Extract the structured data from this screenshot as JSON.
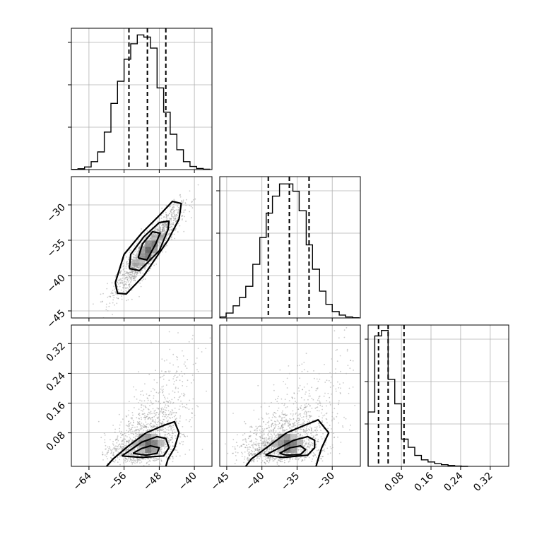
{
  "chart_data": [
    {
      "panel": "hist-param-1",
      "type": "histogram",
      "xlim": [
        -68,
        -36
      ],
      "ylim": [
        0,
        3200
      ],
      "bin_edges": [
        -68,
        -66.5,
        -65,
        -63.5,
        -62,
        -60.5,
        -59,
        -57.5,
        -56,
        -54.5,
        -53,
        -51.5,
        -50,
        -48.5,
        -47,
        -45.5,
        -44,
        -42.5,
        -41,
        -39.5,
        -38,
        -36.5
      ],
      "counts": [
        5,
        20,
        60,
        180,
        400,
        850,
        1500,
        2000,
        2500,
        2850,
        3050,
        3000,
        2750,
        1850,
        1300,
        800,
        450,
        180,
        70,
        25,
        10
      ],
      "quantiles": [
        -54.9,
        -50.7,
        -46.5
      ]
    },
    {
      "panel": "hist-param-2",
      "type": "histogram",
      "xlim": [
        -46,
        -26
      ],
      "ylim": [
        0,
        2900
      ],
      "bin_edges": [
        -45.9,
        -45.1,
        -44.1,
        -43.2,
        -42.3,
        -41.3,
        -40.3,
        -39.4,
        -38.5,
        -37.5,
        -36.5,
        -35.6,
        -34.7,
        -33.7,
        -32.8,
        -31.8,
        -30.9,
        -30.0,
        -29.0,
        -28.1,
        -27.1,
        -26.2
      ],
      "counts": [
        20,
        100,
        250,
        420,
        650,
        1100,
        1650,
        2150,
        2500,
        2750,
        2750,
        2600,
        2200,
        1500,
        1000,
        550,
        280,
        130,
        60,
        20,
        5
      ],
      "quantiles": [
        -39.1,
        -36.1,
        -33.3
      ]
    },
    {
      "panel": "hist-param-3",
      "type": "histogram",
      "xlim": [
        -0.01,
        0.37
      ],
      "ylim": [
        0,
        2600
      ],
      "bin_edges": [
        -0.01,
        0.008,
        0.026,
        0.044,
        0.062,
        0.08,
        0.098,
        0.116,
        0.134,
        0.152,
        0.17,
        0.188,
        0.206,
        0.224,
        0.242,
        0.26
      ],
      "counts": [
        1000,
        2400,
        2500,
        1600,
        1150,
        500,
        350,
        200,
        120,
        80,
        50,
        30,
        15,
        5,
        0
      ],
      "quantiles": [
        0.018,
        0.044,
        0.087
      ]
    },
    {
      "panel": "scatter-p1-p2",
      "type": "scatter",
      "xlim": [
        -68,
        -36
      ],
      "ylim": [
        -46,
        -26
      ],
      "center": [
        -50.5,
        -36.4
      ],
      "sigma": [
        3.6,
        2.9
      ],
      "rho": 0.9,
      "contours": [
        [
          [
            -58.0,
            -41.0
          ],
          [
            -57.5,
            -42.5
          ],
          [
            -55.5,
            -42.6
          ],
          [
            -51.5,
            -40.0
          ],
          [
            -46.0,
            -35.0
          ],
          [
            -43.5,
            -32.0
          ],
          [
            -43.0,
            -29.8
          ],
          [
            -45.0,
            -29.5
          ],
          [
            -48.0,
            -31.5
          ],
          [
            -52.0,
            -34.0
          ],
          [
            -56.0,
            -37.0
          ],
          [
            -58.0,
            -41.0
          ]
        ],
        [
          [
            -54.8,
            -39.0
          ],
          [
            -52.5,
            -39.3
          ],
          [
            -48.0,
            -36.5
          ],
          [
            -46.0,
            -33.5
          ],
          [
            -45.8,
            -32.3
          ],
          [
            -48.0,
            -32.5
          ],
          [
            -51.5,
            -34.5
          ],
          [
            -54.5,
            -37.0
          ],
          [
            -54.8,
            -39.0
          ]
        ],
        [
          [
            -52.8,
            -37.5
          ],
          [
            -50.8,
            -37.8
          ],
          [
            -48.8,
            -35.5
          ],
          [
            -47.8,
            -34.0
          ],
          [
            -49.5,
            -33.8
          ],
          [
            -51.8,
            -35.5
          ],
          [
            -52.8,
            -37.5
          ]
        ]
      ]
    },
    {
      "panel": "scatter-p1-p3",
      "type": "scatter",
      "xlim": [
        -68,
        -36
      ],
      "ylim": [
        -0.01,
        0.37
      ],
      "center": [
        -50.5,
        0.052
      ],
      "sigma": [
        3.6,
        0.045
      ],
      "contours": [
        [
          [
            -60.0,
            -0.01
          ],
          [
            -58.5,
            0.01
          ],
          [
            -55.0,
            0.045
          ],
          [
            -51.0,
            0.08
          ],
          [
            -47.0,
            0.1
          ],
          [
            -44.5,
            0.11
          ],
          [
            -43.5,
            0.08
          ],
          [
            -44.5,
            0.04
          ],
          [
            -46.0,
            0.01
          ],
          [
            -46.5,
            -0.01
          ]
        ],
        [
          [
            -56.5,
            0.018
          ],
          [
            -55.0,
            0.03
          ],
          [
            -52.0,
            0.055
          ],
          [
            -48.5,
            0.07
          ],
          [
            -46.5,
            0.065
          ],
          [
            -45.8,
            0.04
          ],
          [
            -47.0,
            0.018
          ],
          [
            -52.0,
            0.014
          ],
          [
            -56.5,
            0.018
          ]
        ],
        [
          [
            -54.0,
            0.025
          ],
          [
            -52.0,
            0.038
          ],
          [
            -50.0,
            0.045
          ],
          [
            -48.0,
            0.04
          ],
          [
            -48.5,
            0.025
          ],
          [
            -51.0,
            0.02
          ],
          [
            -54.0,
            0.025
          ]
        ]
      ]
    },
    {
      "panel": "scatter-p2-p3",
      "type": "scatter",
      "xlim": [
        -46,
        -26
      ],
      "ylim": [
        -0.01,
        0.37
      ],
      "center": [
        -36.4,
        0.052
      ],
      "sigma": [
        2.9,
        0.045
      ],
      "contours": [
        [
          [
            -42.3,
            -0.01
          ],
          [
            -41.5,
            0.01
          ],
          [
            -39.0,
            0.045
          ],
          [
            -36.5,
            0.08
          ],
          [
            -34.0,
            0.1
          ],
          [
            -32.0,
            0.115
          ],
          [
            -30.5,
            0.08
          ],
          [
            -31.5,
            0.04
          ],
          [
            -32.0,
            0.01
          ],
          [
            -32.3,
            -0.01
          ]
        ],
        [
          [
            -39.5,
            0.02
          ],
          [
            -38.0,
            0.035
          ],
          [
            -35.5,
            0.06
          ],
          [
            -33.5,
            0.07
          ],
          [
            -32.5,
            0.06
          ],
          [
            -32.5,
            0.04
          ],
          [
            -33.5,
            0.02
          ],
          [
            -37.0,
            0.014
          ],
          [
            -39.5,
            0.02
          ]
        ],
        [
          [
            -37.5,
            0.025
          ],
          [
            -36.0,
            0.04
          ],
          [
            -34.5,
            0.045
          ],
          [
            -33.8,
            0.035
          ],
          [
            -34.5,
            0.022
          ],
          [
            -36.5,
            0.02
          ],
          [
            -37.5,
            0.025
          ]
        ]
      ]
    }
  ],
  "axes": {
    "param1_ticks": [
      "−64",
      "−56",
      "−48",
      "−40"
    ],
    "param1_tick_values": [
      -64,
      -56,
      -48,
      -40
    ],
    "param2_row_ticks": [
      "−30",
      "−35",
      "−40",
      "−45"
    ],
    "param2_row_values": [
      -30,
      -35,
      -40,
      -45
    ],
    "param2_col_ticks": [
      "−45",
      "−40",
      "−35",
      "−30"
    ],
    "param2_col_values": [
      -45,
      -40,
      -35,
      -30
    ],
    "param3_row_ticks": [
      "0.32",
      "0.24",
      "0.16",
      "0.08"
    ],
    "param3_row_values": [
      0.32,
      0.24,
      0.16,
      0.08
    ],
    "param3_col_ticks": [
      "0.08",
      "0.16",
      "0.24",
      "0.32"
    ],
    "param3_col_values": [
      0.08,
      0.16,
      0.24,
      0.32
    ]
  },
  "colors": {
    "frame": "#000000",
    "grid": "#b0b0b0",
    "points": "#8c8c8c",
    "quantile_line": "#000000"
  }
}
